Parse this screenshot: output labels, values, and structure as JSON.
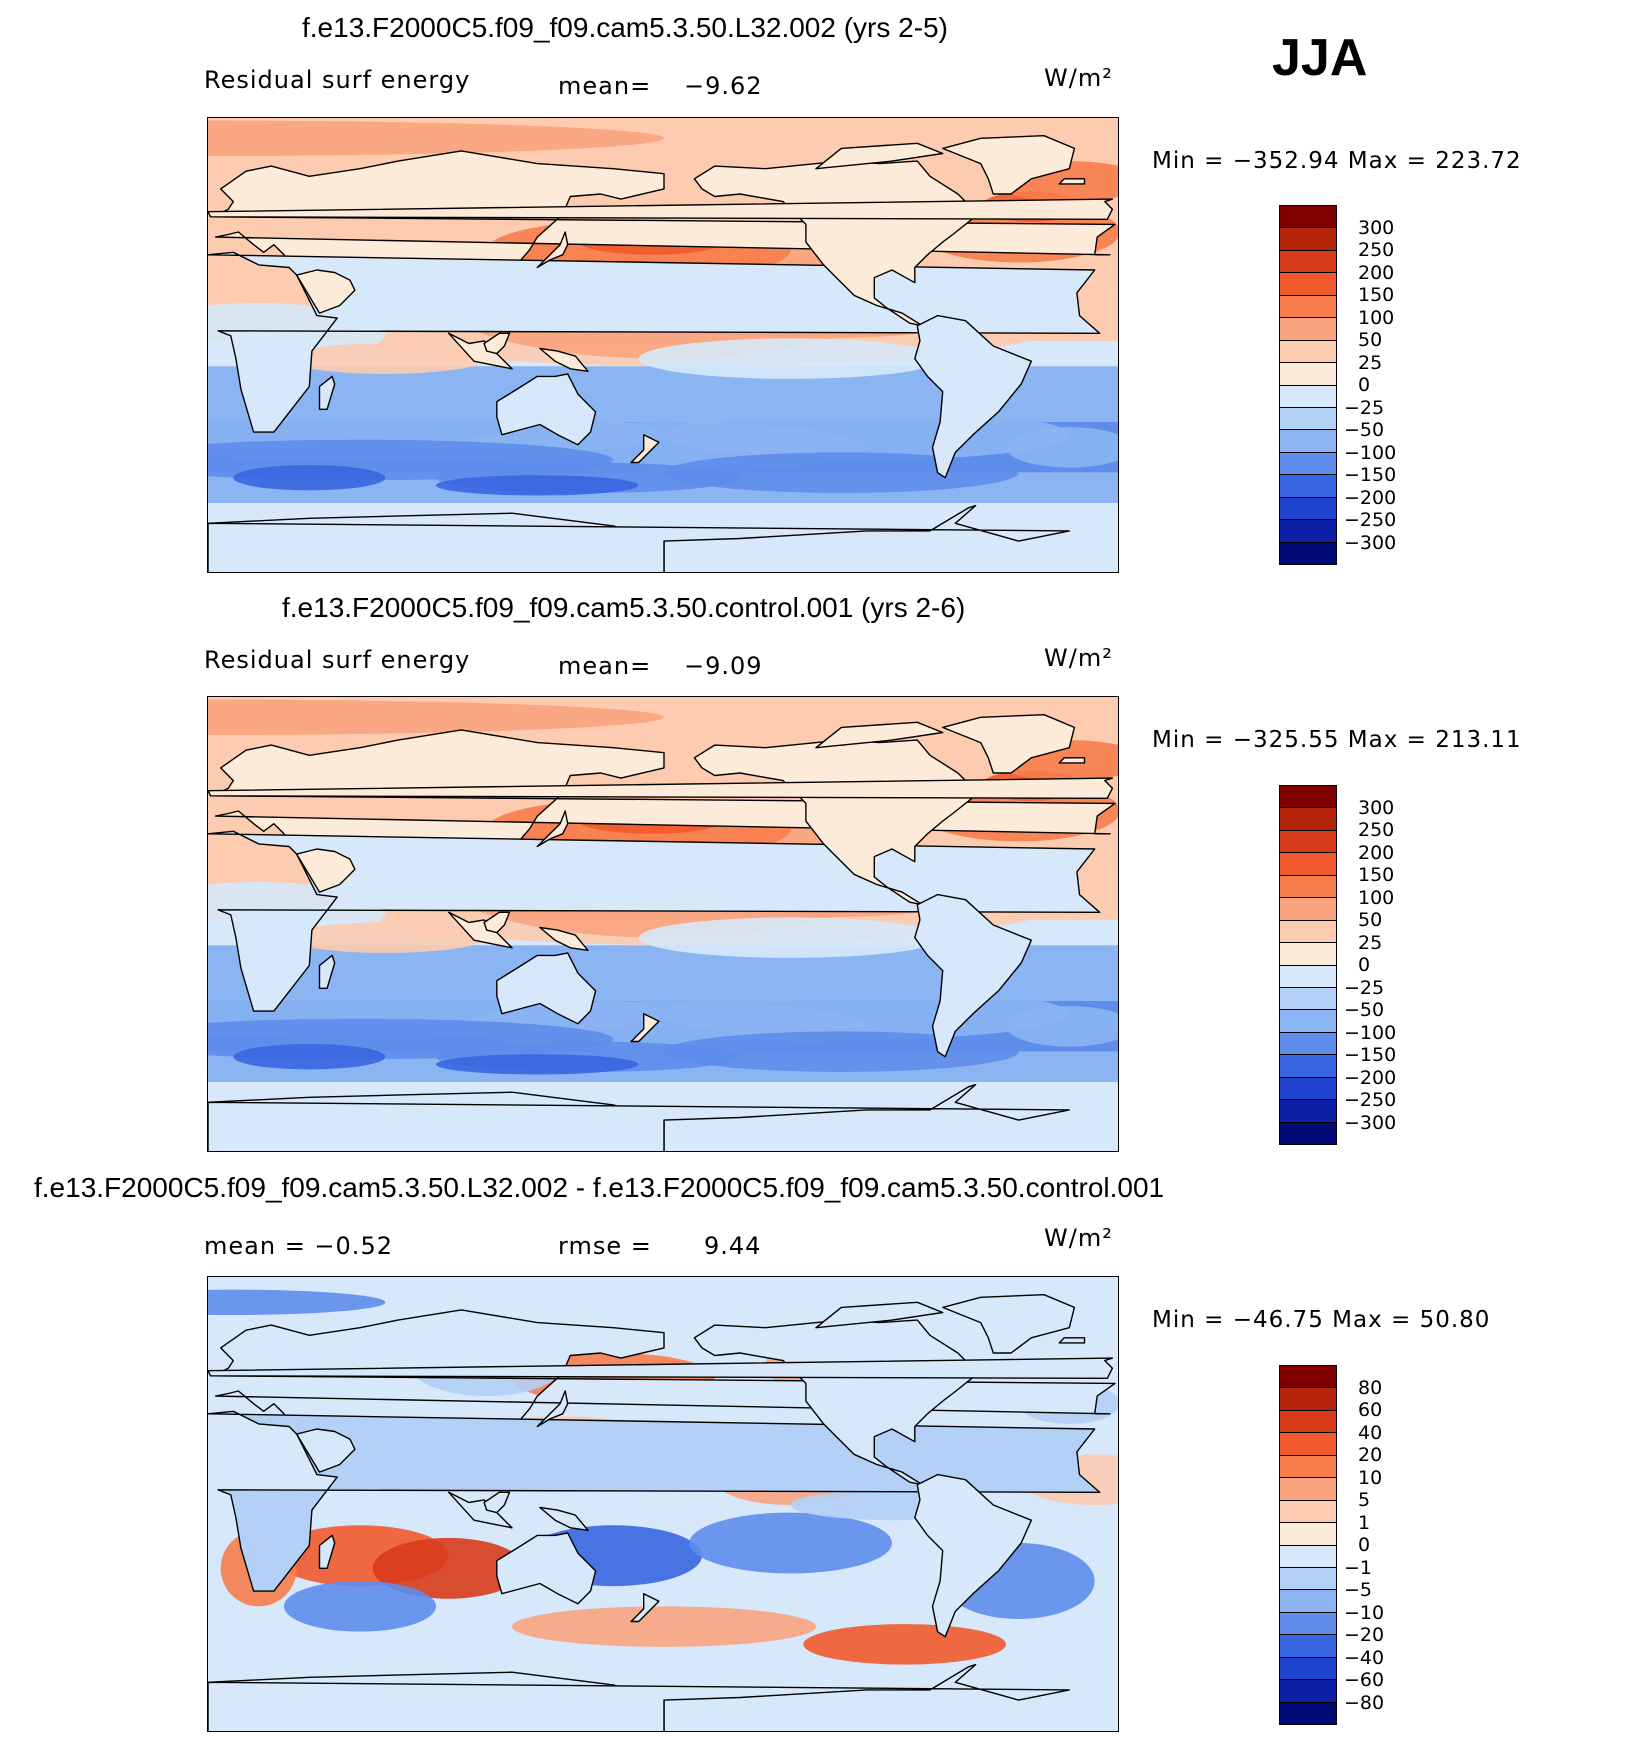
{
  "season": "JJA",
  "units": "W/m²",
  "panels": [
    {
      "title": "f.e13.F2000C5.f09_f09.cam5.3.50.L32.002 (yrs 2-5)",
      "left_label": "Residual surf energy",
      "mid_label": "mean=",
      "mid_value": "−9.62",
      "units": "W/m²",
      "minmax": "Min = −352.94 Max = 223.72",
      "levels": [
        "300",
        "250",
        "200",
        "150",
        "100",
        "50",
        "25",
        "0",
        "−25",
        "−50",
        "−100",
        "−150",
        "−200",
        "−250",
        "−300"
      ],
      "colors": [
        "#800000",
        "#B3240A",
        "#D83B1A",
        "#F15A2C",
        "#F77D4D",
        "#FAA47F",
        "#FCCBB0",
        "#FDEBD9",
        "#D6E8FA",
        "#B3D0F6",
        "#8AB4F2",
        "#5E8DEB",
        "#3866E0",
        "#1F43CF",
        "#0B20A5",
        "#020A78"
      ],
      "mean_value": -9.62,
      "min_value": -352.94,
      "max_value": 223.72
    },
    {
      "title": "f.e13.F2000C5.f09_f09.cam5.3.50.control.001 (yrs 2-6)",
      "left_label": "Residual surf energy",
      "mid_label": "mean=",
      "mid_value": "−9.09",
      "units": "W/m²",
      "minmax": "Min = −325.55 Max = 213.11",
      "levels": [
        "300",
        "250",
        "200",
        "150",
        "100",
        "50",
        "25",
        "0",
        "−25",
        "−50",
        "−100",
        "−150",
        "−200",
        "−250",
        "−300"
      ],
      "colors": [
        "#800000",
        "#B3240A",
        "#D83B1A",
        "#F15A2C",
        "#F77D4D",
        "#FAA47F",
        "#FCCBB0",
        "#FDEBD9",
        "#D6E8FA",
        "#B3D0F6",
        "#8AB4F2",
        "#5E8DEB",
        "#3866E0",
        "#1F43CF",
        "#0B20A5",
        "#020A78"
      ],
      "mean_value": -9.09,
      "min_value": -325.55,
      "max_value": 213.11
    },
    {
      "title": "f.e13.F2000C5.f09_f09.cam5.3.50.L32.002 - f.e13.F2000C5.f09_f09.cam5.3.50.control.001",
      "left_label": "mean =   −0.52",
      "mid_label": "rmse =",
      "mid_value": "9.44",
      "units": "W/m²",
      "minmax": "Min = −46.75 Max =  50.80",
      "levels": [
        "80",
        "60",
        "40",
        "20",
        "10",
        "5",
        "1",
        "0",
        "−1",
        "−5",
        "−10",
        "−20",
        "−40",
        "−60",
        "−80"
      ],
      "colors": [
        "#800000",
        "#B3240A",
        "#D83B1A",
        "#F15A2C",
        "#F77D4D",
        "#FAA47F",
        "#FCCBB0",
        "#FDEBD9",
        "#D6E8FA",
        "#B3D0F6",
        "#8AB4F2",
        "#5E8DEB",
        "#3866E0",
        "#1F43CF",
        "#0B20A5",
        "#020A78"
      ],
      "mean_value": -0.52,
      "rmse_value": 9.44,
      "min_value": -46.75,
      "max_value": 50.8
    }
  ]
}
